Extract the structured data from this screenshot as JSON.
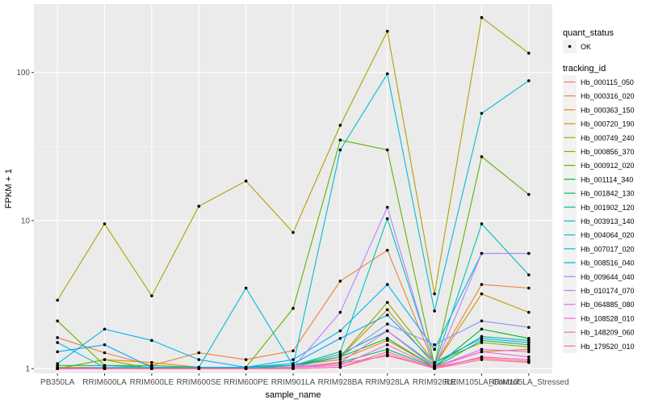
{
  "chart_data": {
    "type": "line",
    "xlabel": "sample_name",
    "ylabel": "FPKM + 1",
    "y_scale": "log10",
    "ylim": [
      0.93,
      290
    ],
    "y_ticks": [
      1,
      10,
      100
    ],
    "grid": true,
    "legend_position": "right",
    "categories": [
      "PB350LA",
      "RRIM600LA",
      "RRIM600LE",
      "RRIM600SE",
      "RRIM600PE",
      "RRIM901LA",
      "RRIM928BA",
      "RRIM928LA",
      "RRIM928LE",
      "RRIM105LA_Control",
      "RRIM105LA_Stressed"
    ],
    "point_legend": {
      "title": "quant_status",
      "label": "OK"
    },
    "series_legend_title": "tracking_id",
    "series": [
      {
        "name": "Hb_000115_050",
        "color": "#F8766D",
        "values": [
          1.01,
          1.01,
          1.01,
          1.01,
          1.01,
          1.02,
          1.08,
          1.22,
          1.02,
          1.18,
          1.12
        ]
      },
      {
        "name": "Hb_000316_020",
        "color": "#EC8239",
        "values": [
          1.62,
          1.28,
          1.05,
          1.28,
          1.15,
          1.32,
          3.9,
          6.3,
          1.05,
          3.7,
          3.5
        ]
      },
      {
        "name": "Hb_000363_150",
        "color": "#DB8E00",
        "values": [
          1.0,
          1.15,
          1.1,
          1.02,
          1.02,
          1.05,
          1.15,
          1.55,
          1.03,
          1.3,
          1.35
        ]
      },
      {
        "name": "Hb_000720_190",
        "color": "#C79800",
        "values": [
          1.02,
          1.02,
          1.02,
          1.02,
          1.02,
          1.05,
          1.2,
          2.5,
          1.05,
          3.2,
          2.4
        ]
      },
      {
        "name": "Hb_000749_240",
        "color": "#AEA200",
        "values": [
          2.9,
          9.5,
          3.1,
          12.5,
          18.5,
          8.3,
          44,
          190,
          3.2,
          235,
          135
        ]
      },
      {
        "name": "Hb_000856_370",
        "color": "#8FAA00",
        "values": [
          1.0,
          1.15,
          1.0,
          1.0,
          1.0,
          1.02,
          1.2,
          2.8,
          1.1,
          1.5,
          1.4
        ]
      },
      {
        "name": "Hb_000912_020",
        "color": "#64B200",
        "values": [
          2.1,
          1.05,
          1.05,
          1.02,
          1.02,
          2.55,
          35,
          30,
          1.05,
          27,
          15
        ]
      },
      {
        "name": "Hb_001114_340",
        "color": "#00B81B",
        "values": [
          1.0,
          1.02,
          1.0,
          1.0,
          1.0,
          1.05,
          1.2,
          1.6,
          1.02,
          1.85,
          1.6
        ]
      },
      {
        "name": "Hb_001842_130",
        "color": "#00BD5C",
        "values": [
          1.0,
          1.0,
          1.0,
          1.0,
          1.0,
          1.02,
          1.1,
          1.35,
          1.02,
          1.55,
          1.45
        ]
      },
      {
        "name": "Hb_001902_120",
        "color": "#00C08E",
        "values": [
          1.05,
          1.05,
          1.02,
          1.02,
          1.02,
          1.05,
          1.25,
          1.8,
          1.05,
          1.65,
          1.55
        ]
      },
      {
        "name": "Hb_003913_140",
        "color": "#00C1B7",
        "values": [
          1.0,
          1.02,
          1.02,
          1.02,
          1.02,
          1.05,
          1.3,
          10.3,
          1.05,
          9.5,
          4.3
        ]
      },
      {
        "name": "Hb_004064_020",
        "color": "#00BDD4",
        "values": [
          1.5,
          1.02,
          1.02,
          1.02,
          3.5,
          1.05,
          30,
          98,
          2.45,
          53,
          88
        ]
      },
      {
        "name": "Hb_007017_020",
        "color": "#00B5EE",
        "values": [
          1.08,
          1.85,
          1.55,
          1.15,
          1.02,
          1.15,
          1.8,
          3.7,
          1.35,
          6.0,
          6.0
        ]
      },
      {
        "name": "Hb_008516_040",
        "color": "#00A7FF",
        "values": [
          1.3,
          1.45,
          1.02,
          1.02,
          1.02,
          1.08,
          1.6,
          2.3,
          1.1,
          1.6,
          1.5
        ]
      },
      {
        "name": "Hb_009644_040",
        "color": "#7F96FF",
        "values": [
          1.0,
          1.02,
          1.0,
          1.0,
          1.0,
          1.02,
          1.2,
          2.0,
          1.45,
          2.1,
          1.9
        ]
      },
      {
        "name": "Hb_010174_070",
        "color": "#BC81FF",
        "values": [
          1.0,
          1.0,
          1.0,
          1.0,
          1.0,
          1.02,
          2.4,
          12.3,
          1.02,
          6.0,
          6.0
        ]
      },
      {
        "name": "Hb_064885_080",
        "color": "#E26EF7",
        "values": [
          1.0,
          1.0,
          1.0,
          1.0,
          1.0,
          1.02,
          1.1,
          1.8,
          1.02,
          1.35,
          1.3
        ]
      },
      {
        "name": "Hb_108528_010",
        "color": "#F863DF",
        "values": [
          1.0,
          1.0,
          1.0,
          1.0,
          1.0,
          1.02,
          1.05,
          1.45,
          1.02,
          1.3,
          1.2
        ]
      },
      {
        "name": "Hb_148209_060",
        "color": "#FF62BF",
        "values": [
          1.0,
          1.0,
          1.0,
          1.0,
          1.0,
          1.0,
          1.02,
          1.3,
          1.0,
          1.2,
          1.15
        ]
      },
      {
        "name": "Hb_179520_010",
        "color": "#FF6A98",
        "values": [
          1.0,
          1.0,
          1.0,
          1.0,
          1.0,
          1.0,
          1.02,
          1.25,
          1.0,
          1.15,
          1.1
        ]
      }
    ]
  }
}
